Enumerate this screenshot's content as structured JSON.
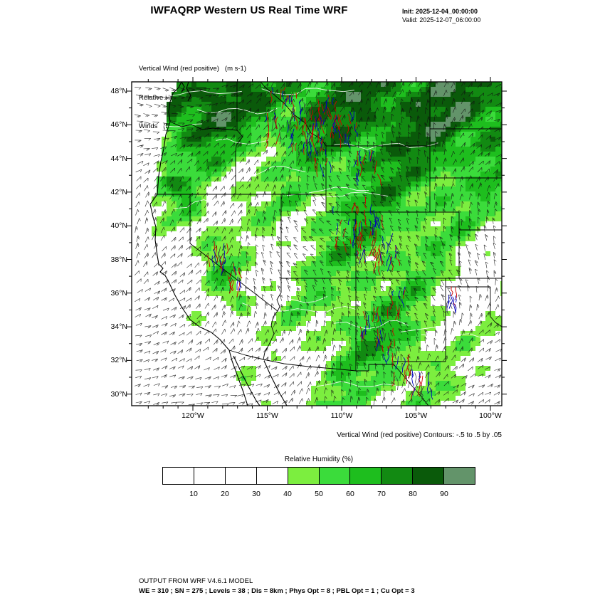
{
  "header": {
    "title": "IWFAQRP Western US Real Time WRF",
    "init_label": "Init: 2025-12-04_00:00:00",
    "valid_label": "Valid: 2025-12-07_06:00:00"
  },
  "map_legend": {
    "line1": "Vertical Wind (red positive)   (m s-1)",
    "line2": "Relative Humidity   (%)",
    "line3": "Winds   (kts)"
  },
  "contour_note": "Vertical Wind (red positive) Contours: -.5 to .5 by .05",
  "colorbar": {
    "title": "Relative Humidity  (%)",
    "boundary_labels": [
      "10",
      "20",
      "30",
      "40",
      "50",
      "60",
      "70",
      "80",
      "90"
    ],
    "cell_colors": [
      "#FFFFFF",
      "#FFFFFF",
      "#FFFFFF",
      "#FFFFFF",
      "#7CEE3F",
      "#3BDC3B",
      "#1EBE1E",
      "#128A12",
      "#0A5A0A",
      "#63946A"
    ]
  },
  "footer": {
    "line1": "OUTPUT FROM WRF V4.6.1 MODEL",
    "line2": "WE = 310 ; SN = 275 ; Levels = 38 ; Dis = 8km ; Phys Opt = 8 ; PBL Opt = 1 ; Cu Opt = 3"
  },
  "chart_data": {
    "type": "heatmap",
    "subtype": "weather-model-map",
    "region": "Western US",
    "title": "IWFAQRP Western US Real Time WRF",
    "init_time": "2025-12-04_00:00:00",
    "valid_time": "2025-12-07_06:00:00",
    "fields": [
      {
        "name": "Vertical Wind (red positive)",
        "units": "m s-1",
        "style": "red/blue contour streaks",
        "contours": "-.5 to .5 by .05"
      },
      {
        "name": "Relative Humidity",
        "units": "%",
        "style": "green filled shading"
      },
      {
        "name": "Winds",
        "units": "kts",
        "style": "wind barbs"
      }
    ],
    "x_axis": {
      "ticks": [
        120,
        115,
        110,
        105,
        100
      ],
      "tick_labels": [
        "120°W",
        "115°W",
        "110°W",
        "105°W",
        "100°W"
      ],
      "kind": "longitude"
    },
    "y_axis": {
      "ticks": [
        48,
        46,
        44,
        42,
        40,
        38,
        36,
        34,
        32,
        30
      ],
      "tick_labels": [
        "48°N",
        "46°N",
        "44°N",
        "42°N",
        "40°N",
        "38°N",
        "36°N",
        "34°N",
        "32°N",
        "30°N"
      ],
      "kind": "latitude"
    },
    "colorbar_scale": {
      "boundaries": [
        10,
        20,
        30,
        40,
        50,
        60,
        70,
        80,
        90
      ],
      "units": "%"
    },
    "model_note": "OUTPUT FROM WRF V4.6.1 MODEL",
    "grid_note": "WE = 310 ; SN = 275 ; Levels = 38 ; Dis = 8km ; Phys Opt = 8 ; PBL Opt = 1 ; Cu Opt = 3"
  }
}
